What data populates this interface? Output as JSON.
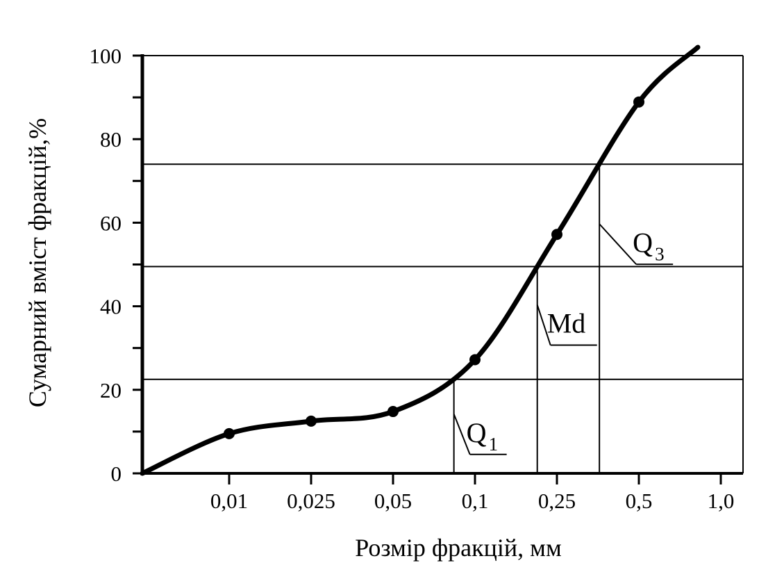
{
  "chart_data": {
    "type": "line",
    "title": "",
    "xlabel": "Розмір фракцій, мм",
    "ylabel": "Сумарний вміст фракцій,%",
    "x_scale": "categorical (equally spaced sieve sizes)",
    "x_categories": [
      "0,01",
      "0,025",
      "0,05",
      "0,1",
      "0,25",
      "0,5",
      "1,0"
    ],
    "ylim": [
      0,
      100
    ],
    "y_ticks": [
      "0",
      "20",
      "40",
      "60",
      "80",
      "100"
    ],
    "series": [
      {
        "markers": [
          {
            "x": "0,01",
            "y": 9.5
          },
          {
            "x": "0,025",
            "y": 12.5
          },
          {
            "x": "0,05",
            "y": 14.8
          },
          {
            "x": "0,1",
            "y": 27.2
          },
          {
            "x": "0,25",
            "y": 57.2
          },
          {
            "x": "0,5",
            "y": 88.9
          }
        ]
      }
    ],
    "reference_lines_y": [
      22.5,
      49.5,
      74
    ],
    "annotations": [
      {
        "label": "Q",
        "subscript": "1",
        "y": 22.5
      },
      {
        "label": "Md",
        "subscript": "",
        "y": 49.5
      },
      {
        "label": "Q",
        "subscript": "3",
        "y": 74
      }
    ]
  }
}
